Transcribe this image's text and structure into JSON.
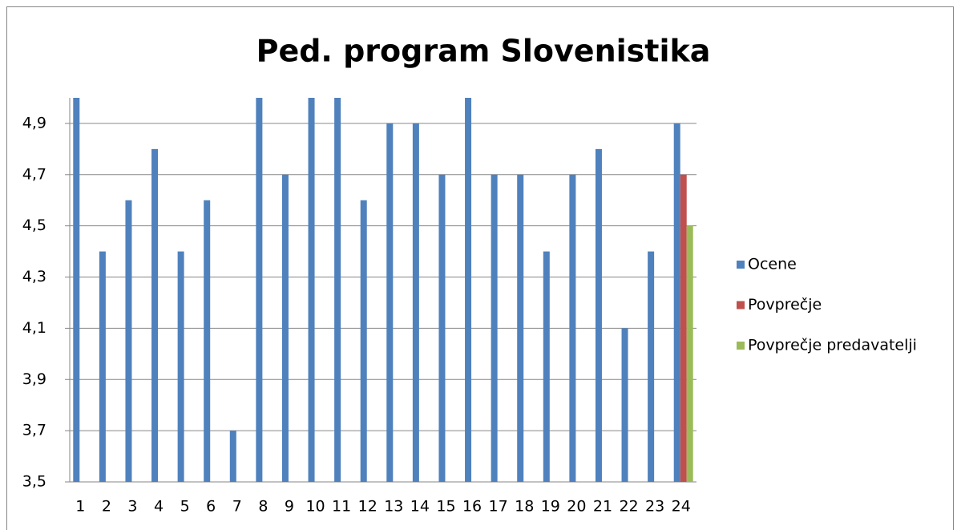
{
  "chart_data": {
    "type": "bar",
    "title": "Ped. program Slovenistika",
    "categories": [
      "1",
      "2",
      "3",
      "4",
      "5",
      "6",
      "7",
      "8",
      "9",
      "10",
      "11",
      "12",
      "13",
      "14",
      "15",
      "16",
      "17",
      "18",
      "19",
      "20",
      "21",
      "22",
      "23",
      "24"
    ],
    "series": [
      {
        "name": "Ocene",
        "color": "#4f81bd",
        "values": [
          5,
          4.4,
          4.6,
          4.8,
          4.4,
          4.6,
          3.7,
          5,
          4.7,
          5,
          5,
          4.6,
          4.9,
          4.9,
          4.7,
          5,
          4.7,
          4.7,
          4.4,
          4.7,
          4.8,
          4.1,
          4.4,
          4.9
        ]
      },
      {
        "name": "Povprečje",
        "color": "#c0504d",
        "values": [
          null,
          null,
          null,
          null,
          null,
          null,
          null,
          null,
          null,
          null,
          null,
          null,
          null,
          null,
          null,
          null,
          null,
          null,
          null,
          null,
          null,
          null,
          null,
          4.7
        ]
      },
      {
        "name": "Povprečje predavatelji",
        "color": "#9bbb59",
        "values": [
          null,
          null,
          null,
          null,
          null,
          null,
          null,
          null,
          null,
          null,
          null,
          null,
          null,
          null,
          null,
          null,
          null,
          null,
          null,
          null,
          null,
          null,
          null,
          4.5
        ]
      }
    ],
    "ylim": [
      3.5,
      5.0
    ],
    "yticks": [
      {
        "value": 3.5,
        "label": "3,5"
      },
      {
        "value": 3.7,
        "label": "3,7"
      },
      {
        "value": 3.9,
        "label": "3,9"
      },
      {
        "value": 4.1,
        "label": "4,1"
      },
      {
        "value": 4.3,
        "label": "4,3"
      },
      {
        "value": 4.5,
        "label": "4,5"
      },
      {
        "value": 4.7,
        "label": "4,7"
      },
      {
        "value": 4.9,
        "label": "4,9"
      }
    ],
    "grid": true,
    "legend": "right"
  }
}
